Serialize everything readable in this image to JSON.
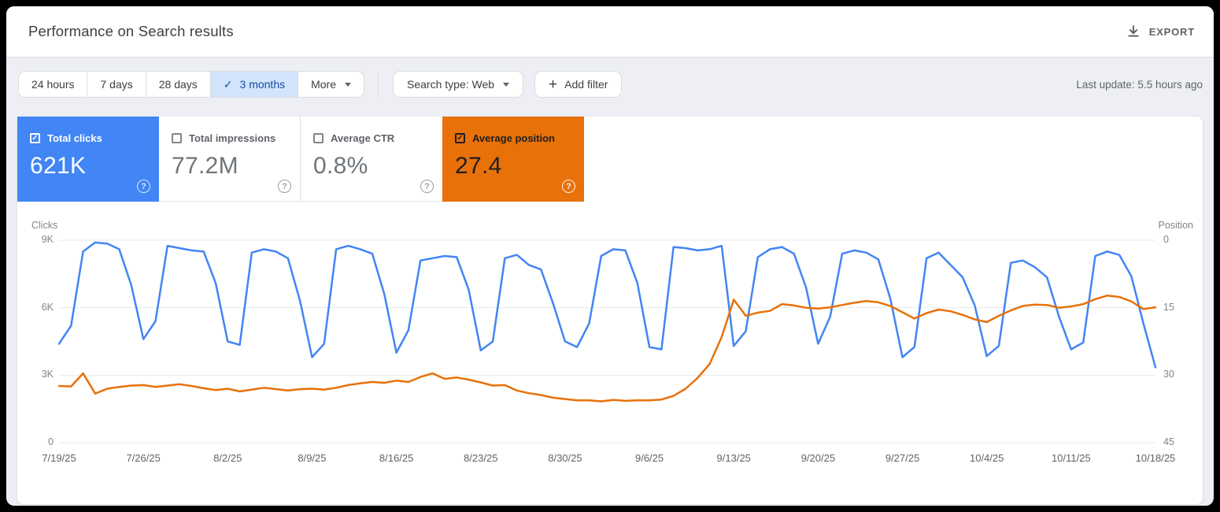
{
  "header": {
    "title": "Performance on Search results",
    "export_label": "EXPORT"
  },
  "toolbar": {
    "ranges": [
      {
        "label": "24 hours",
        "selected": false
      },
      {
        "label": "7 days",
        "selected": false
      },
      {
        "label": "28 days",
        "selected": false
      },
      {
        "label": "3 months",
        "selected": true
      },
      {
        "label": "More",
        "selected": false
      }
    ],
    "search_type_label": "Search type: Web",
    "add_filter_label": "Add filter",
    "last_update": "Last update: 5.5 hours ago"
  },
  "icons": {
    "export": "download-icon",
    "selected_range": "check-icon",
    "more": "caret-down-icon",
    "search_type": "caret-down-icon",
    "add_filter": "plus-icon",
    "card_help": "help-circle-icon"
  },
  "metric_cards": [
    {
      "label": "Total clicks",
      "value": "621K",
      "checked": true,
      "color": "#4285f4"
    },
    {
      "label": "Total impressions",
      "value": "77.2M",
      "checked": false,
      "color": "#ffffff"
    },
    {
      "label": "Average CTR",
      "value": "0.8%",
      "checked": false,
      "color": "#ffffff"
    },
    {
      "label": "Average position",
      "value": "27.4",
      "checked": true,
      "color": "#e8710a"
    }
  ],
  "chart_data": {
    "type": "line",
    "start_date": "7/19/25",
    "end_date": "10/18/25",
    "x_tick_labels": [
      "7/19/25",
      "7/26/25",
      "8/2/25",
      "8/9/25",
      "8/16/25",
      "8/23/25",
      "8/30/25",
      "9/6/25",
      "9/13/25",
      "9/20/25",
      "9/27/25",
      "10/4/25",
      "10/11/25",
      "10/18/25"
    ],
    "left_axis": {
      "label": "Clicks",
      "ticks": [
        "9K",
        "6K",
        "3K",
        "0"
      ],
      "tick_values": [
        9000,
        6000,
        3000,
        0
      ],
      "range": [
        0,
        9000
      ]
    },
    "right_axis": {
      "label": "Position",
      "ticks": [
        "0",
        "15",
        "30",
        "45"
      ],
      "tick_values": [
        0,
        15,
        30,
        45
      ],
      "range": [
        0,
        45
      ],
      "inverted": true
    },
    "grid": true,
    "series": [
      {
        "name": "Total clicks",
        "axis": "left",
        "color": "#4285f4",
        "values": [
          4400,
          5200,
          8500,
          8900,
          8850,
          8600,
          7000,
          4600,
          5400,
          8750,
          8650,
          8550,
          8500,
          7100,
          4500,
          4350,
          8450,
          8600,
          8500,
          8200,
          6300,
          3800,
          4400,
          8600,
          8750,
          8600,
          8400,
          6600,
          4000,
          5000,
          8100,
          8200,
          8300,
          8250,
          6800,
          4100,
          4500,
          8200,
          8350,
          7900,
          7700,
          6200,
          4500,
          4250,
          5300,
          8300,
          8600,
          8550,
          7100,
          4250,
          4150,
          8700,
          8650,
          8550,
          8600,
          8750,
          4300,
          4950,
          8250,
          8600,
          8700,
          8400,
          6900,
          4400,
          5600,
          8400,
          8550,
          8450,
          8150,
          6400,
          3800,
          4250,
          8200,
          8450,
          7900,
          7350,
          6100,
          3850,
          4300,
          8000,
          8100,
          7800,
          7350,
          5600,
          4150,
          4450,
          8300,
          8500,
          8350,
          7400,
          5300,
          3350
        ]
      },
      {
        "name": "Average position",
        "axis": "right",
        "color": "#e8710a",
        "values": [
          32.4,
          32.5,
          29.6,
          34.1,
          33.0,
          32.6,
          32.3,
          32.2,
          32.6,
          32.3,
          32.0,
          32.4,
          32.9,
          33.3,
          33.0,
          33.6,
          33.2,
          32.8,
          33.1,
          33.4,
          33.1,
          33.0,
          33.2,
          32.8,
          32.2,
          31.8,
          31.5,
          31.7,
          31.2,
          31.5,
          30.4,
          29.6,
          30.8,
          30.5,
          31.0,
          31.6,
          32.3,
          32.2,
          33.4,
          34.0,
          34.4,
          35.0,
          35.3,
          35.6,
          35.6,
          35.8,
          35.5,
          35.7,
          35.6,
          35.6,
          35.4,
          34.6,
          33.0,
          30.6,
          27.5,
          21.5,
          13.2,
          16.8,
          16.1,
          15.7,
          14.2,
          14.5,
          15.0,
          15.2,
          14.9,
          14.4,
          13.9,
          13.5,
          13.8,
          14.6,
          16.0,
          17.4,
          16.2,
          15.4,
          15.8,
          16.6,
          17.6,
          18.2,
          16.8,
          15.6,
          14.6,
          14.3,
          14.4,
          15.0,
          14.7,
          14.2,
          13.1,
          12.3,
          12.6,
          13.6,
          15.3,
          14.9
        ]
      }
    ]
  }
}
